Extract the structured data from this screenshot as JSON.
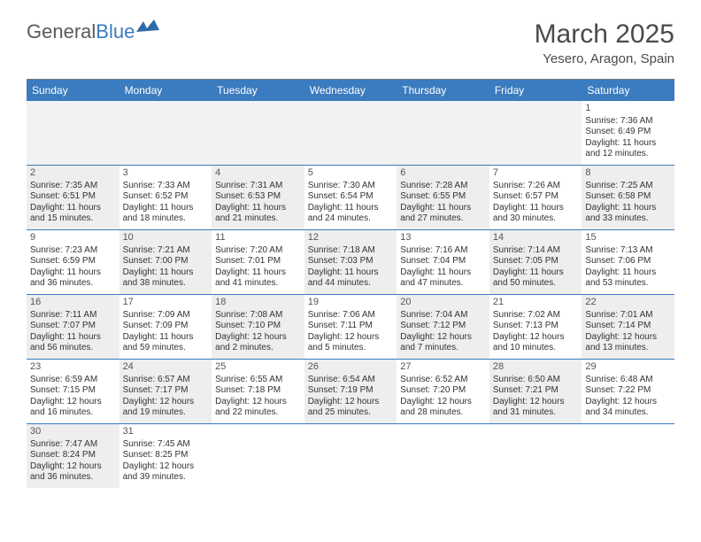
{
  "logo": {
    "part1": "General",
    "part2": "Blue"
  },
  "title": "March 2025",
  "location": "Yesero, Aragon, Spain",
  "colors": {
    "header_bg": "#3b7bbf",
    "row_divider": "#3b7bbf",
    "cell_grey": "#eeeeee",
    "cell_white": "#ffffff",
    "text": "#333333"
  },
  "dayNames": [
    "Sunday",
    "Monday",
    "Tuesday",
    "Wednesday",
    "Thursday",
    "Friday",
    "Saturday"
  ],
  "weeks": [
    [
      null,
      null,
      null,
      null,
      null,
      null,
      {
        "n": "1",
        "sr": "7:36 AM",
        "ss": "6:49 PM",
        "dl": "11 hours and 12 minutes."
      }
    ],
    [
      {
        "n": "2",
        "sr": "7:35 AM",
        "ss": "6:51 PM",
        "dl": "11 hours and 15 minutes."
      },
      {
        "n": "3",
        "sr": "7:33 AM",
        "ss": "6:52 PM",
        "dl": "11 hours and 18 minutes."
      },
      {
        "n": "4",
        "sr": "7:31 AM",
        "ss": "6:53 PM",
        "dl": "11 hours and 21 minutes."
      },
      {
        "n": "5",
        "sr": "7:30 AM",
        "ss": "6:54 PM",
        "dl": "11 hours and 24 minutes."
      },
      {
        "n": "6",
        "sr": "7:28 AM",
        "ss": "6:55 PM",
        "dl": "11 hours and 27 minutes."
      },
      {
        "n": "7",
        "sr": "7:26 AM",
        "ss": "6:57 PM",
        "dl": "11 hours and 30 minutes."
      },
      {
        "n": "8",
        "sr": "7:25 AM",
        "ss": "6:58 PM",
        "dl": "11 hours and 33 minutes."
      }
    ],
    [
      {
        "n": "9",
        "sr": "7:23 AM",
        "ss": "6:59 PM",
        "dl": "11 hours and 36 minutes."
      },
      {
        "n": "10",
        "sr": "7:21 AM",
        "ss": "7:00 PM",
        "dl": "11 hours and 38 minutes."
      },
      {
        "n": "11",
        "sr": "7:20 AM",
        "ss": "7:01 PM",
        "dl": "11 hours and 41 minutes."
      },
      {
        "n": "12",
        "sr": "7:18 AM",
        "ss": "7:03 PM",
        "dl": "11 hours and 44 minutes."
      },
      {
        "n": "13",
        "sr": "7:16 AM",
        "ss": "7:04 PM",
        "dl": "11 hours and 47 minutes."
      },
      {
        "n": "14",
        "sr": "7:14 AM",
        "ss": "7:05 PM",
        "dl": "11 hours and 50 minutes."
      },
      {
        "n": "15",
        "sr": "7:13 AM",
        "ss": "7:06 PM",
        "dl": "11 hours and 53 minutes."
      }
    ],
    [
      {
        "n": "16",
        "sr": "7:11 AM",
        "ss": "7:07 PM",
        "dl": "11 hours and 56 minutes."
      },
      {
        "n": "17",
        "sr": "7:09 AM",
        "ss": "7:09 PM",
        "dl": "11 hours and 59 minutes."
      },
      {
        "n": "18",
        "sr": "7:08 AM",
        "ss": "7:10 PM",
        "dl": "12 hours and 2 minutes."
      },
      {
        "n": "19",
        "sr": "7:06 AM",
        "ss": "7:11 PM",
        "dl": "12 hours and 5 minutes."
      },
      {
        "n": "20",
        "sr": "7:04 AM",
        "ss": "7:12 PM",
        "dl": "12 hours and 7 minutes."
      },
      {
        "n": "21",
        "sr": "7:02 AM",
        "ss": "7:13 PM",
        "dl": "12 hours and 10 minutes."
      },
      {
        "n": "22",
        "sr": "7:01 AM",
        "ss": "7:14 PM",
        "dl": "12 hours and 13 minutes."
      }
    ],
    [
      {
        "n": "23",
        "sr": "6:59 AM",
        "ss": "7:15 PM",
        "dl": "12 hours and 16 minutes."
      },
      {
        "n": "24",
        "sr": "6:57 AM",
        "ss": "7:17 PM",
        "dl": "12 hours and 19 minutes."
      },
      {
        "n": "25",
        "sr": "6:55 AM",
        "ss": "7:18 PM",
        "dl": "12 hours and 22 minutes."
      },
      {
        "n": "26",
        "sr": "6:54 AM",
        "ss": "7:19 PM",
        "dl": "12 hours and 25 minutes."
      },
      {
        "n": "27",
        "sr": "6:52 AM",
        "ss": "7:20 PM",
        "dl": "12 hours and 28 minutes."
      },
      {
        "n": "28",
        "sr": "6:50 AM",
        "ss": "7:21 PM",
        "dl": "12 hours and 31 minutes."
      },
      {
        "n": "29",
        "sr": "6:48 AM",
        "ss": "7:22 PM",
        "dl": "12 hours and 34 minutes."
      }
    ],
    [
      {
        "n": "30",
        "sr": "7:47 AM",
        "ss": "8:24 PM",
        "dl": "12 hours and 36 minutes."
      },
      {
        "n": "31",
        "sr": "7:45 AM",
        "ss": "8:25 PM",
        "dl": "12 hours and 39 minutes."
      },
      null,
      null,
      null,
      null,
      null
    ]
  ],
  "labels": {
    "sunrise": "Sunrise: ",
    "sunset": "Sunset: ",
    "daylight": "Daylight: "
  }
}
